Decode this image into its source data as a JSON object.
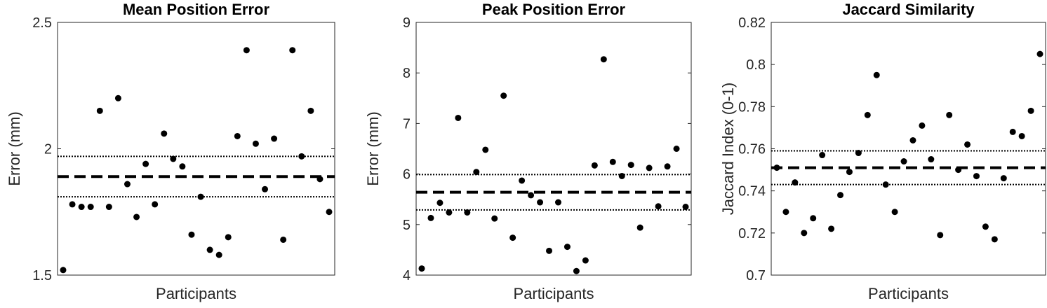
{
  "chart_data": [
    {
      "type": "scatter",
      "title": "Mean Position Error",
      "xlabel": "Participants",
      "ylabel": "Error (mm)",
      "ylim": [
        1.5,
        2.5
      ],
      "yticks": [
        "1.5",
        "2",
        "2.5"
      ],
      "ytick_values": [
        1.5,
        2.0,
        2.5
      ],
      "grid": false,
      "mean": 1.89,
      "ci": [
        1.81,
        1.97
      ],
      "values": [
        1.52,
        1.78,
        1.77,
        1.77,
        2.15,
        1.77,
        2.2,
        1.86,
        1.73,
        1.94,
        1.78,
        2.06,
        1.96,
        1.93,
        1.66,
        1.81,
        1.6,
        1.58,
        1.65,
        2.05,
        2.39,
        2.02,
        1.84,
        2.04,
        1.64,
        2.39,
        1.97,
        2.15,
        1.88,
        1.75
      ]
    },
    {
      "type": "scatter",
      "title": "Peak Position Error",
      "xlabel": "Participants",
      "ylabel": "Error (mm)",
      "ylim": [
        4,
        9
      ],
      "yticks": [
        "4",
        "5",
        "6",
        "7",
        "8",
        "9"
      ],
      "ytick_values": [
        4,
        5,
        6,
        7,
        8,
        9
      ],
      "grid": false,
      "mean": 5.64,
      "ci": [
        5.29,
        5.99
      ],
      "values": [
        4.13,
        5.13,
        5.43,
        5.24,
        7.11,
        5.24,
        6.04,
        6.48,
        5.12,
        7.55,
        4.74,
        5.87,
        5.58,
        5.44,
        4.48,
        5.44,
        4.56,
        4.08,
        4.29,
        6.17,
        8.27,
        6.24,
        5.96,
        6.18,
        4.94,
        6.12,
        5.36,
        6.15,
        6.5,
        5.35
      ]
    },
    {
      "type": "scatter",
      "title": "Jaccard Similarity",
      "xlabel": "Participants",
      "ylabel": "Jaccard Index (0-1)",
      "ylim": [
        0.7,
        0.82
      ],
      "yticks": [
        "0.7",
        "0.72",
        "0.74",
        "0.76",
        "0.78",
        "0.8",
        "0.82"
      ],
      "ytick_values": [
        0.7,
        0.72,
        0.74,
        0.76,
        0.78,
        0.8,
        0.82
      ],
      "grid": false,
      "mean": 0.751,
      "ci": [
        0.743,
        0.759
      ],
      "values": [
        0.751,
        0.73,
        0.744,
        0.72,
        0.727,
        0.757,
        0.722,
        0.738,
        0.749,
        0.758,
        0.776,
        0.795,
        0.743,
        0.73,
        0.754,
        0.764,
        0.771,
        0.755,
        0.719,
        0.776,
        0.75,
        0.762,
        0.747,
        0.723,
        0.717,
        0.746,
        0.768,
        0.766,
        0.778,
        0.805
      ]
    }
  ]
}
